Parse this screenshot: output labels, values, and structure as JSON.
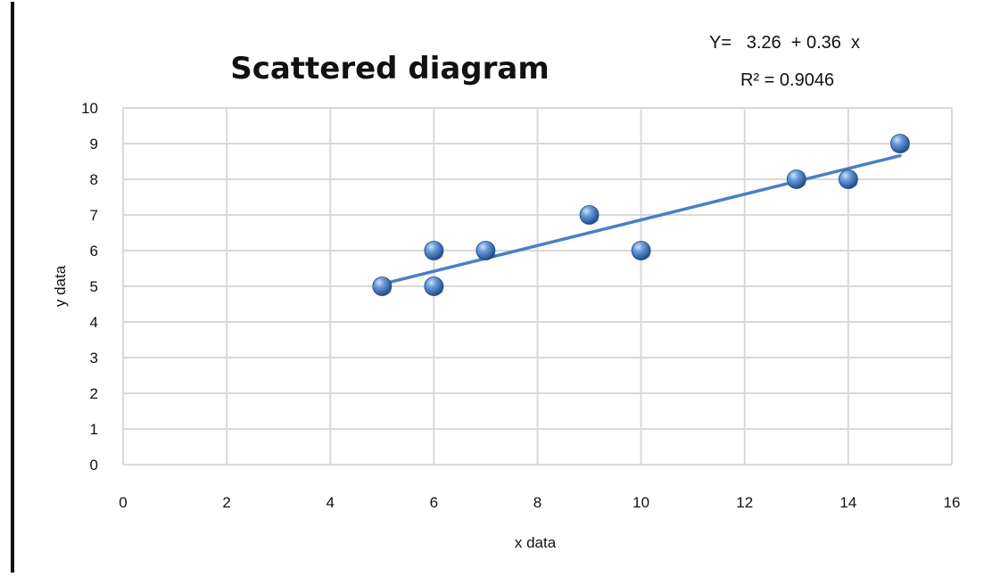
{
  "chart_data": {
    "type": "scatter",
    "title": "Scattered diagram",
    "xlabel": "x data",
    "ylabel": "y data",
    "xlim": [
      0,
      16
    ],
    "ylim": [
      0,
      10
    ],
    "xticks": [
      "0",
      "2",
      "4",
      "6",
      "8",
      "10",
      "12",
      "14",
      "16"
    ],
    "yticks": [
      "0",
      "1",
      "2",
      "3",
      "4",
      "5",
      "6",
      "7",
      "8",
      "9",
      "10"
    ],
    "grid": true,
    "series": [
      {
        "x": [
          5,
          6,
          6,
          7,
          9,
          10,
          13,
          14,
          15
        ],
        "y": [
          5,
          6,
          5,
          6,
          7,
          6,
          8,
          8,
          9
        ],
        "color": "#4a7fc4"
      }
    ],
    "trendline": {
      "intercept": 3.26,
      "slope": 0.36,
      "x_range": [
        5,
        15
      ],
      "color": "#4a7fc4"
    },
    "annotations": {
      "equation": "Y=   3.26  + 0.36  x",
      "r_squared": "R² = 0.9046"
    }
  }
}
